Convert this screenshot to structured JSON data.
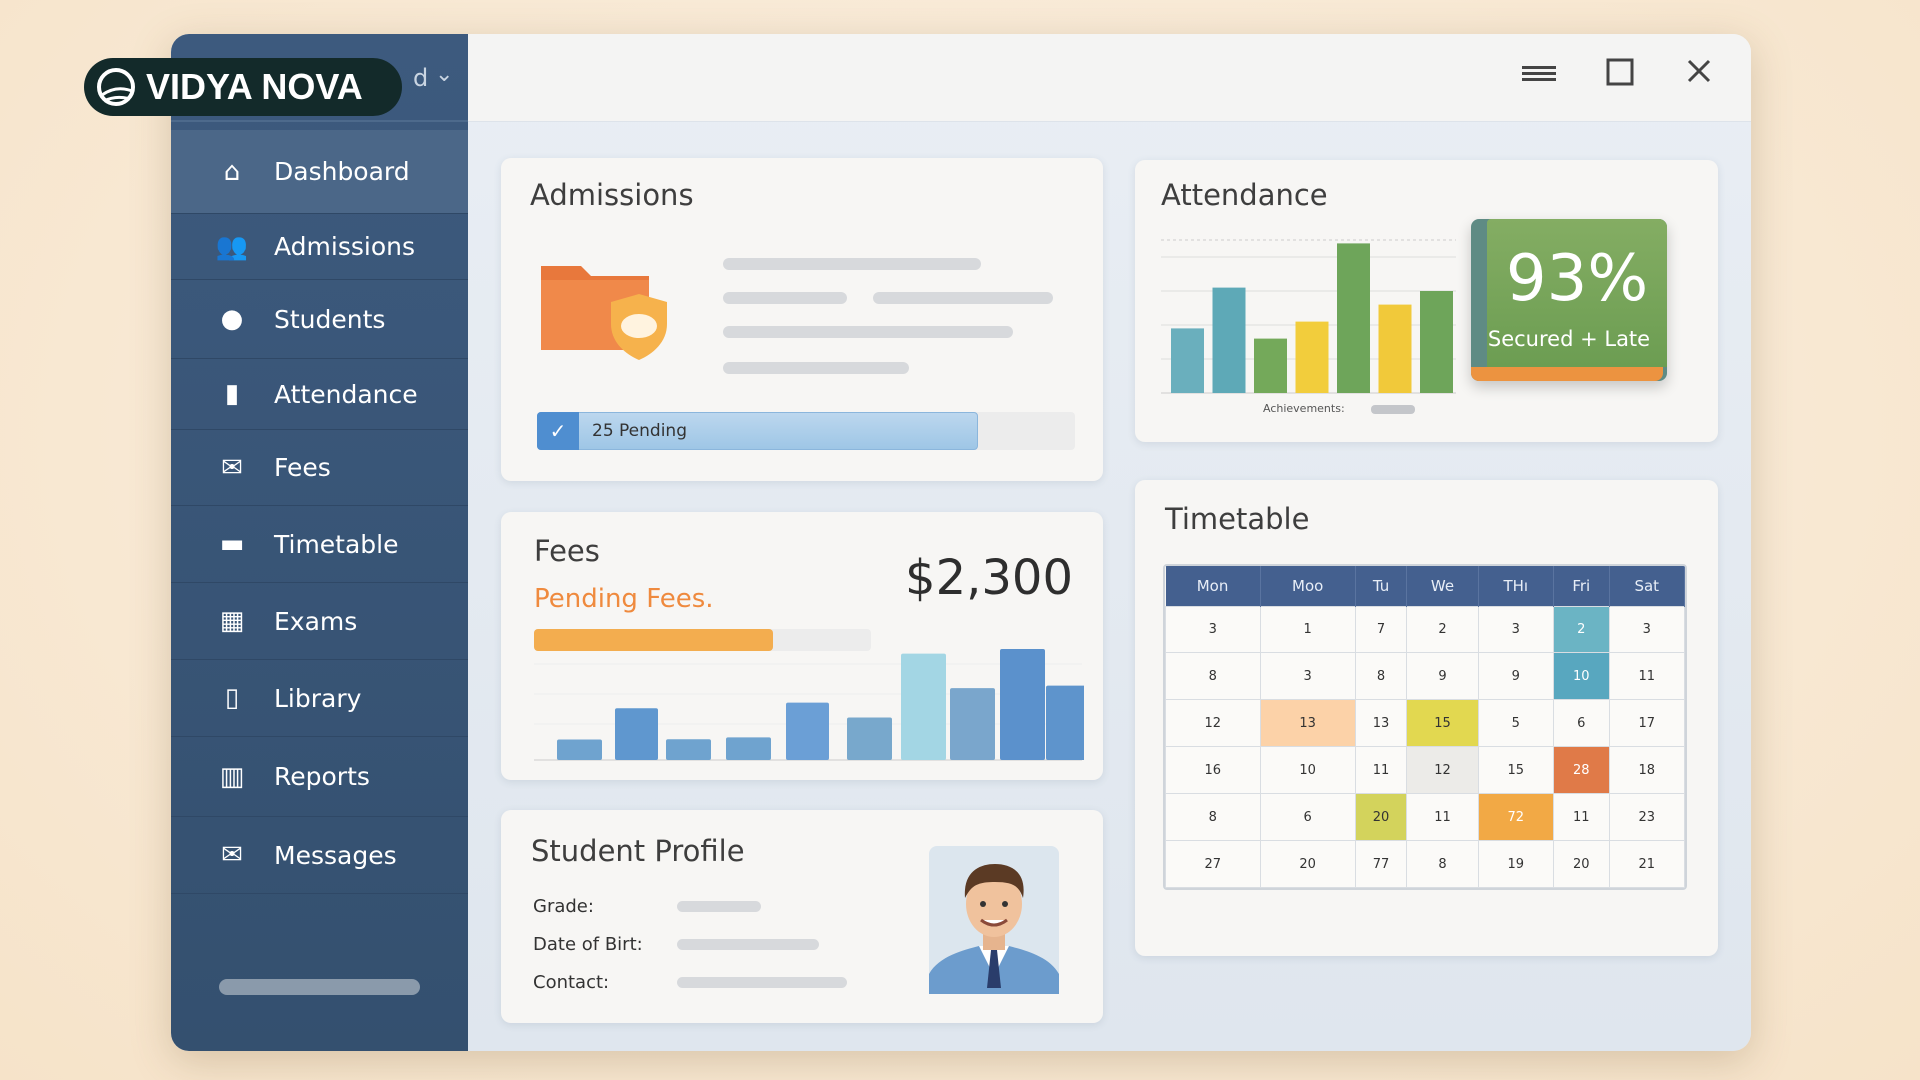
{
  "logo": {
    "text": "VIDYA NOVA"
  },
  "sidebar": {
    "header_partial": "d",
    "items": [
      {
        "label": "Dashboard",
        "icon": "home-icon",
        "active": true
      },
      {
        "label": "Admissions",
        "icon": "users-icon"
      },
      {
        "label": "Students",
        "icon": "pin-icon"
      },
      {
        "label": "Attendance",
        "icon": "lock-icon"
      },
      {
        "label": "Fees",
        "icon": "envelope-icon"
      },
      {
        "label": "Timetable",
        "icon": "briefcase-icon"
      },
      {
        "label": "Exams",
        "icon": "calculator-icon"
      },
      {
        "label": "Library",
        "icon": "book-icon"
      },
      {
        "label": "Reports",
        "icon": "gift-icon"
      },
      {
        "label": "Messages",
        "icon": "mail-icon"
      }
    ]
  },
  "admissions": {
    "title": "Admissions",
    "pending_label": "25 Pending",
    "progress_percent": 82
  },
  "attendance": {
    "title": "Attendance",
    "percent": "93%",
    "caption": "Secured + Late",
    "chart_label": "Achievements:"
  },
  "fees": {
    "title": "Fees",
    "subtitle": "Pending Fees.",
    "amount": "$2,300",
    "progress_percent": 71
  },
  "profile": {
    "title": "Student Profile",
    "fields": [
      "Grade:",
      "Date of Birt:",
      "Contact:"
    ]
  },
  "timetable": {
    "title": "Timetable",
    "days": [
      "Mon",
      "Moo",
      "Tu",
      "We",
      "THı",
      "Fri",
      "Sat"
    ],
    "rows": [
      [
        "3",
        "1",
        "7",
        "2",
        "3",
        "2",
        "3"
      ],
      [
        "8",
        "3",
        "8",
        "9",
        "9",
        "10",
        "11"
      ],
      [
        "12",
        "13",
        "13",
        "15",
        "5",
        "6",
        "17"
      ],
      [
        "16",
        "10",
        "11",
        "12",
        "15",
        "28",
        "18"
      ],
      [
        "8",
        "6",
        "20",
        "11",
        "72",
        "11",
        "23"
      ],
      [
        "27",
        "20",
        "77",
        "8",
        "19",
        "20",
        "21"
      ]
    ],
    "highlights": [
      {
        "r": 0,
        "c": 5,
        "color": "#6bb4c4"
      },
      {
        "r": 1,
        "c": 5,
        "color": "#58a7bf"
      },
      {
        "r": 2,
        "c": 1,
        "color": "#fcd2a8"
      },
      {
        "r": 2,
        "c": 3,
        "color": "#e2d850"
      },
      {
        "r": 3,
        "c": 3,
        "color": "#ecebe8"
      },
      {
        "r": 3,
        "c": 5,
        "color": "#e07a48"
      },
      {
        "r": 4,
        "c": 2,
        "color": "#d3d35c"
      },
      {
        "r": 4,
        "c": 4,
        "color": "#f2a945"
      }
    ]
  },
  "chart_data": [
    {
      "type": "bar",
      "values": [
        1.9,
        3.1,
        1.6,
        2.1,
        4.4,
        2.6,
        3.0
      ],
      "colors": [
        "#6aafbd",
        "#5ea9b7",
        "#74a95a",
        "#f2cd3c",
        "#6ea55a",
        "#f1c93a",
        "#6ea55a"
      ],
      "grid": true
    },
    {
      "type": "bar",
      "values": [
        66,
        167,
        67,
        73,
        185,
        137,
        343,
        232,
        358,
        240
      ],
      "colors": [
        "#6fa3cf",
        "#5f97cf",
        "#6fa3cf",
        "#6fa3cf",
        "#6b9fd6",
        "#78a8cc",
        "#a3d6e4",
        "#7aa6cc",
        "#5b91cc",
        "#5e94cc"
      ],
      "grid": true
    }
  ]
}
